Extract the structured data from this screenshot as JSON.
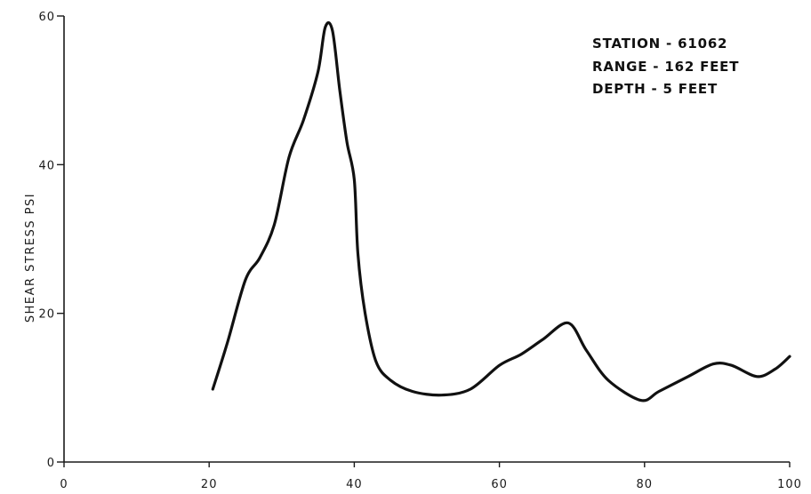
{
  "chart_data": {
    "type": "line",
    "title": "",
    "xlabel": "",
    "ylabel": "SHEAR STRESS PSI",
    "xlim": [
      0,
      100
    ],
    "ylim": [
      0,
      60
    ],
    "grid": false,
    "x_ticks": [
      "0",
      "20",
      "40",
      "60",
      "80",
      "100"
    ],
    "y_ticks": [
      "0",
      "20",
      "40",
      "60"
    ],
    "annotations": [
      "STATION - 61062",
      "RANGE - 162 FEET",
      "DEPTH - 5 FEET"
    ],
    "series": [
      {
        "color": "#111111",
        "x": [
          20.5,
          22.5,
          25,
          27,
          29,
          31,
          33,
          35,
          36,
          37,
          38,
          39,
          40,
          40.5,
          41.5,
          43,
          45,
          48,
          52,
          56,
          60,
          63,
          66,
          69.5,
          72,
          75,
          79.5,
          82,
          86,
          89.5,
          92,
          95.5,
          98,
          100
        ],
        "y": [
          9.8,
          16,
          24.5,
          27.5,
          32,
          41,
          46,
          52.5,
          58.5,
          58,
          50,
          43,
          38,
          28,
          20,
          13.5,
          11,
          9.5,
          9,
          9.8,
          13,
          14.5,
          16.5,
          18.7,
          15,
          11,
          8.3,
          9.5,
          11.5,
          13.2,
          13,
          11.5,
          12.5,
          14.2
        ]
      }
    ]
  }
}
